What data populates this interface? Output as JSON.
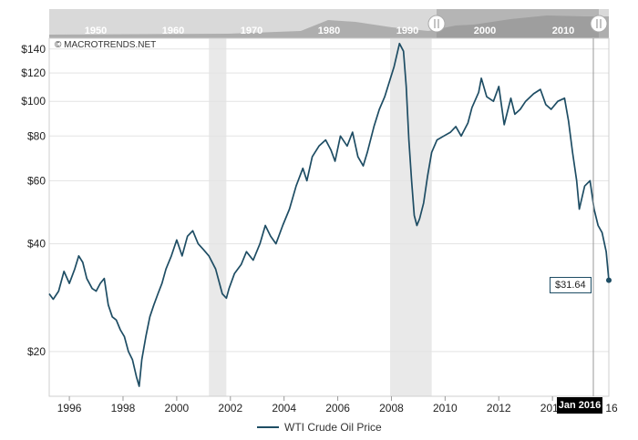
{
  "copyright": "© MACROTRENDS.NET",
  "navigator": {
    "decades": [
      "1950",
      "1960",
      "1970",
      "1980",
      "1990",
      "2000",
      "2010"
    ]
  },
  "tooltip_value": "$31.64",
  "date_badge": "Jan 2016",
  "last_x_label": "16",
  "colors": {
    "line": "#1e4d64",
    "recession": "#e9e9e9",
    "grid": "#e3e3e3"
  },
  "chart_data": {
    "type": "line",
    "yscale": "log",
    "ylim": [
      15,
      150
    ],
    "xlim": [
      1995.25,
      2016.1
    ],
    "y_ticks": [
      20,
      40,
      60,
      80,
      100,
      120,
      140
    ],
    "y_tick_labels": [
      "$20",
      "$40",
      "$60",
      "$80",
      "$100",
      "$120",
      "$140"
    ],
    "x_ticks": [
      "1996",
      "1998",
      "2000",
      "2002",
      "2004",
      "2006",
      "2008",
      "2010",
      "2012",
      "2014"
    ],
    "recessions": [
      [
        2001.2,
        2001.85
      ],
      [
        2007.95,
        2009.5
      ]
    ],
    "legend": "WTI Crude Oil Price",
    "series": [
      {
        "name": "WTI Crude Oil Price",
        "x": [
          1995.25,
          1995.4,
          1995.6,
          1995.8,
          1996.0,
          1996.2,
          1996.35,
          1996.5,
          1996.65,
          1996.85,
          1997.0,
          1997.15,
          1997.3,
          1997.45,
          1997.6,
          1997.75,
          1997.9,
          1998.05,
          1998.2,
          1998.35,
          1998.5,
          1998.6,
          1998.7,
          1998.85,
          1999.0,
          1999.15,
          1999.3,
          1999.45,
          1999.6,
          1999.8,
          2000.0,
          2000.2,
          2000.4,
          2000.6,
          2000.8,
          2001.0,
          2001.2,
          2001.45,
          2001.7,
          2001.85,
          2001.95,
          2002.15,
          2002.4,
          2002.6,
          2002.85,
          2003.1,
          2003.3,
          2003.5,
          2003.7,
          2003.95,
          2004.2,
          2004.45,
          2004.7,
          2004.85,
          2005.05,
          2005.3,
          2005.55,
          2005.75,
          2005.9,
          2006.1,
          2006.35,
          2006.55,
          2006.75,
          2006.95,
          2007.1,
          2007.35,
          2007.55,
          2007.75,
          2007.95,
          2008.1,
          2008.3,
          2008.45,
          2008.55,
          2008.65,
          2008.75,
          2008.85,
          2008.95,
          2009.05,
          2009.2,
          2009.35,
          2009.5,
          2009.7,
          2009.95,
          2010.2,
          2010.4,
          2010.6,
          2010.85,
          2011.0,
          2011.25,
          2011.35,
          2011.55,
          2011.8,
          2012.0,
          2012.2,
          2012.45,
          2012.6,
          2012.8,
          2013.0,
          2013.3,
          2013.55,
          2013.75,
          2013.95,
          2014.2,
          2014.45,
          2014.6,
          2014.75,
          2014.9,
          2015.0,
          2015.2,
          2015.4,
          2015.55,
          2015.7,
          2015.85,
          2016.0,
          2016.1
        ],
        "values": [
          29,
          28,
          29.5,
          33.5,
          31,
          34,
          37,
          35.5,
          32,
          30,
          29.5,
          31,
          32,
          27,
          25,
          24.5,
          23,
          22,
          20,
          19,
          17,
          16,
          19,
          22,
          25,
          27,
          29,
          31,
          34,
          37,
          41,
          37,
          42,
          43.5,
          40,
          38.5,
          37,
          34,
          29,
          28.2,
          30,
          33,
          35,
          38,
          36,
          40,
          45,
          42,
          40,
          45,
          50,
          58,
          65,
          60,
          70,
          75,
          78,
          73,
          68,
          80,
          75,
          82,
          70,
          66,
          72,
          85,
          95,
          103,
          115,
          125,
          145,
          138,
          110,
          78,
          60,
          48,
          45,
          47,
          52,
          62,
          72,
          78,
          80,
          82,
          85,
          80,
          87,
          96,
          106,
          116,
          103,
          100,
          110,
          86,
          102,
          92,
          95,
          100,
          105,
          108,
          98,
          95,
          100,
          102,
          88,
          72,
          60,
          50,
          58,
          60,
          50,
          45,
          43,
          38,
          31.64
        ]
      }
    ]
  }
}
